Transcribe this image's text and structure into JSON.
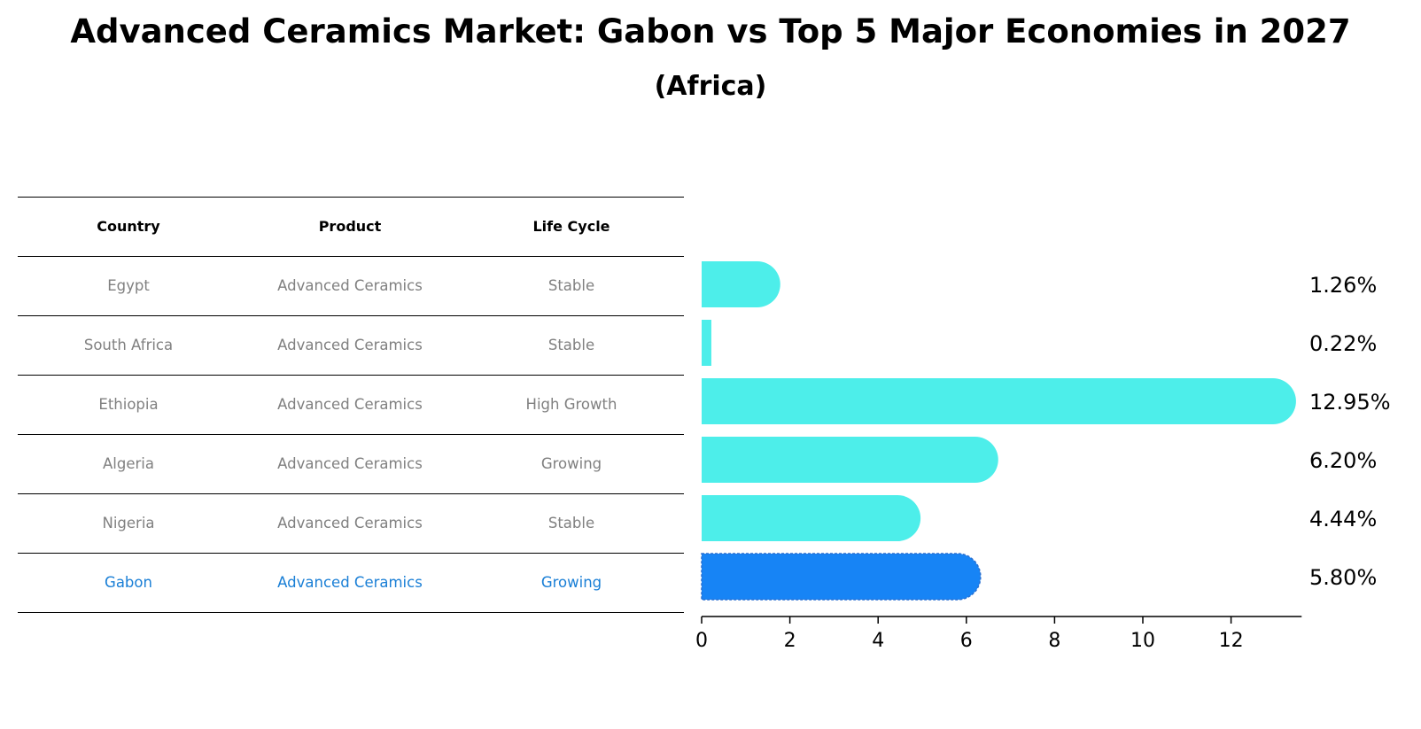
{
  "title": "Advanced Ceramics Market: Gabon vs Top 5 Major Economies in 2027",
  "subtitle": "(Africa)",
  "table": {
    "headers": [
      "Country",
      "Product",
      "Life Cycle"
    ],
    "rows": [
      [
        "Egypt",
        "Advanced Ceramics",
        "Stable"
      ],
      [
        "South Africa",
        "Advanced Ceramics",
        "Stable"
      ],
      [
        "Ethiopia",
        "Advanced Ceramics",
        "High Growth"
      ],
      [
        "Algeria",
        "Advanced Ceramics",
        "Growing"
      ],
      [
        "Nigeria",
        "Advanced Ceramics",
        "Stable"
      ],
      [
        "Gabon",
        "Advanced Ceramics",
        "Growing"
      ]
    ],
    "highlight_row": 5
  },
  "colors": {
    "bar": "#4deeea",
    "highlight_bar": "#1784f5",
    "highlight_text": "#1a7fd6",
    "muted_text": "#808080"
  },
  "chart_data": {
    "type": "bar",
    "orientation": "horizontal",
    "categories": [
      "Egypt",
      "South Africa",
      "Ethiopia",
      "Algeria",
      "Nigeria",
      "Gabon"
    ],
    "values": [
      1.26,
      0.22,
      12.95,
      6.2,
      4.44,
      5.8
    ],
    "value_labels": [
      "1.26%",
      "0.22%",
      "12.95%",
      "6.20%",
      "4.44%",
      "5.80%"
    ],
    "highlight_index": 5,
    "xlim": [
      0,
      13.6
    ],
    "xticks": [
      0,
      2,
      4,
      6,
      8,
      10,
      12
    ],
    "xtick_labels": [
      "0",
      "2",
      "4",
      "6",
      "8",
      "10",
      "12"
    ],
    "xlabel": "",
    "ylabel": ""
  }
}
